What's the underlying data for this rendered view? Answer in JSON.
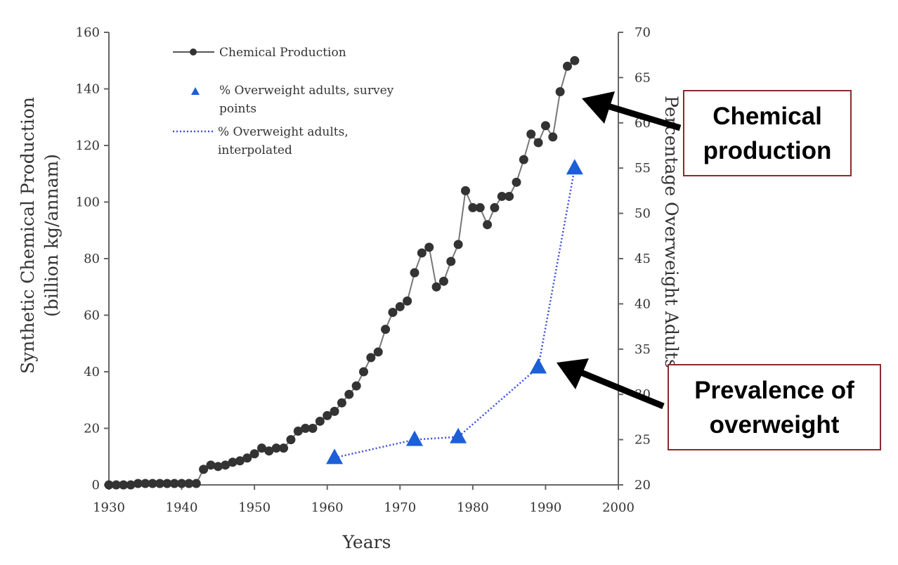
{
  "chart_data": {
    "type": "line",
    "xlabel": "Years",
    "ylabel_left_line1": "Synthetic Chemical Production",
    "ylabel_left_line2": "(billion kg/annam)",
    "ylabel_right": "Percentage Overweight Adults",
    "xlim": [
      1930,
      2000
    ],
    "ylim_left": [
      0,
      160
    ],
    "ylim_right": [
      20,
      70
    ],
    "x_ticks": [
      "1930",
      "1940",
      "1950",
      "1960",
      "1970",
      "1980",
      "1990",
      "2000"
    ],
    "y_left_ticks": [
      "0",
      "20",
      "40",
      "60",
      "80",
      "100",
      "120",
      "140",
      "160"
    ],
    "y_right_ticks": [
      "20",
      "25",
      "30",
      "35",
      "40",
      "45",
      "50",
      "55",
      "60",
      "65",
      "70"
    ],
    "legend_placement": "top-left",
    "series": [
      {
        "name": "Chemical Production",
        "axis": "left",
        "color": "#333333",
        "marker": "circle",
        "x": [
          1930,
          1931,
          1932,
          1933,
          1934,
          1935,
          1936,
          1937,
          1938,
          1939,
          1940,
          1941,
          1942,
          1943,
          1944,
          1945,
          1946,
          1947,
          1948,
          1949,
          1950,
          1951,
          1952,
          1953,
          1954,
          1955,
          1956,
          1957,
          1958,
          1959,
          1960,
          1961,
          1962,
          1963,
          1964,
          1965,
          1966,
          1967,
          1968,
          1969,
          1970,
          1971,
          1972,
          1973,
          1974,
          1975,
          1976,
          1977,
          1978,
          1979,
          1980,
          1981,
          1982,
          1983,
          1984,
          1985,
          1986,
          1987,
          1988,
          1989,
          1990,
          1991,
          1992,
          1993,
          1994
        ],
        "values": [
          0,
          0,
          0,
          0,
          0.5,
          0.5,
          0.5,
          0.5,
          0.5,
          0.5,
          0.5,
          0.5,
          0.5,
          5.5,
          7,
          6.5,
          7,
          8,
          8.5,
          9.5,
          11,
          13,
          12,
          13,
          13,
          16,
          19,
          20,
          20,
          22.5,
          24.5,
          26,
          29,
          32,
          35,
          40,
          45,
          47,
          55,
          61,
          63,
          65,
          75,
          82,
          84,
          70,
          72,
          79,
          85,
          104,
          98,
          98,
          92,
          98,
          102,
          102,
          107,
          115,
          124,
          121,
          127,
          123,
          139,
          148,
          150
        ]
      },
      {
        "name": "% Overweight adults, survey points",
        "legend_line2": "points",
        "axis": "right",
        "color": "#1c5fd8",
        "marker": "triangle",
        "x": [
          1961,
          1972,
          1978,
          1989,
          1994
        ],
        "values": [
          23,
          25,
          25.3,
          33,
          55
        ]
      },
      {
        "name": "% Overweight adults, interpolated",
        "legend_line2": "interpolated",
        "axis": "right",
        "color": "#3a4fd8",
        "style": "dotted",
        "x": [
          1961,
          1972,
          1978,
          1989,
          1994
        ],
        "values": [
          23,
          25,
          25.3,
          33,
          55
        ]
      }
    ]
  },
  "legend": {
    "item1": "Chemical Production",
    "item2_line1": "% Overweight adults, survey",
    "item2_line2": "points",
    "item3_line1": "% Overweight adults,",
    "item3_line2": "interpolated"
  },
  "annotations": {
    "chemical_line1": "Chemical",
    "chemical_line2": "production",
    "overweight_line1": "Prevalence of",
    "overweight_line2": "overweight"
  }
}
